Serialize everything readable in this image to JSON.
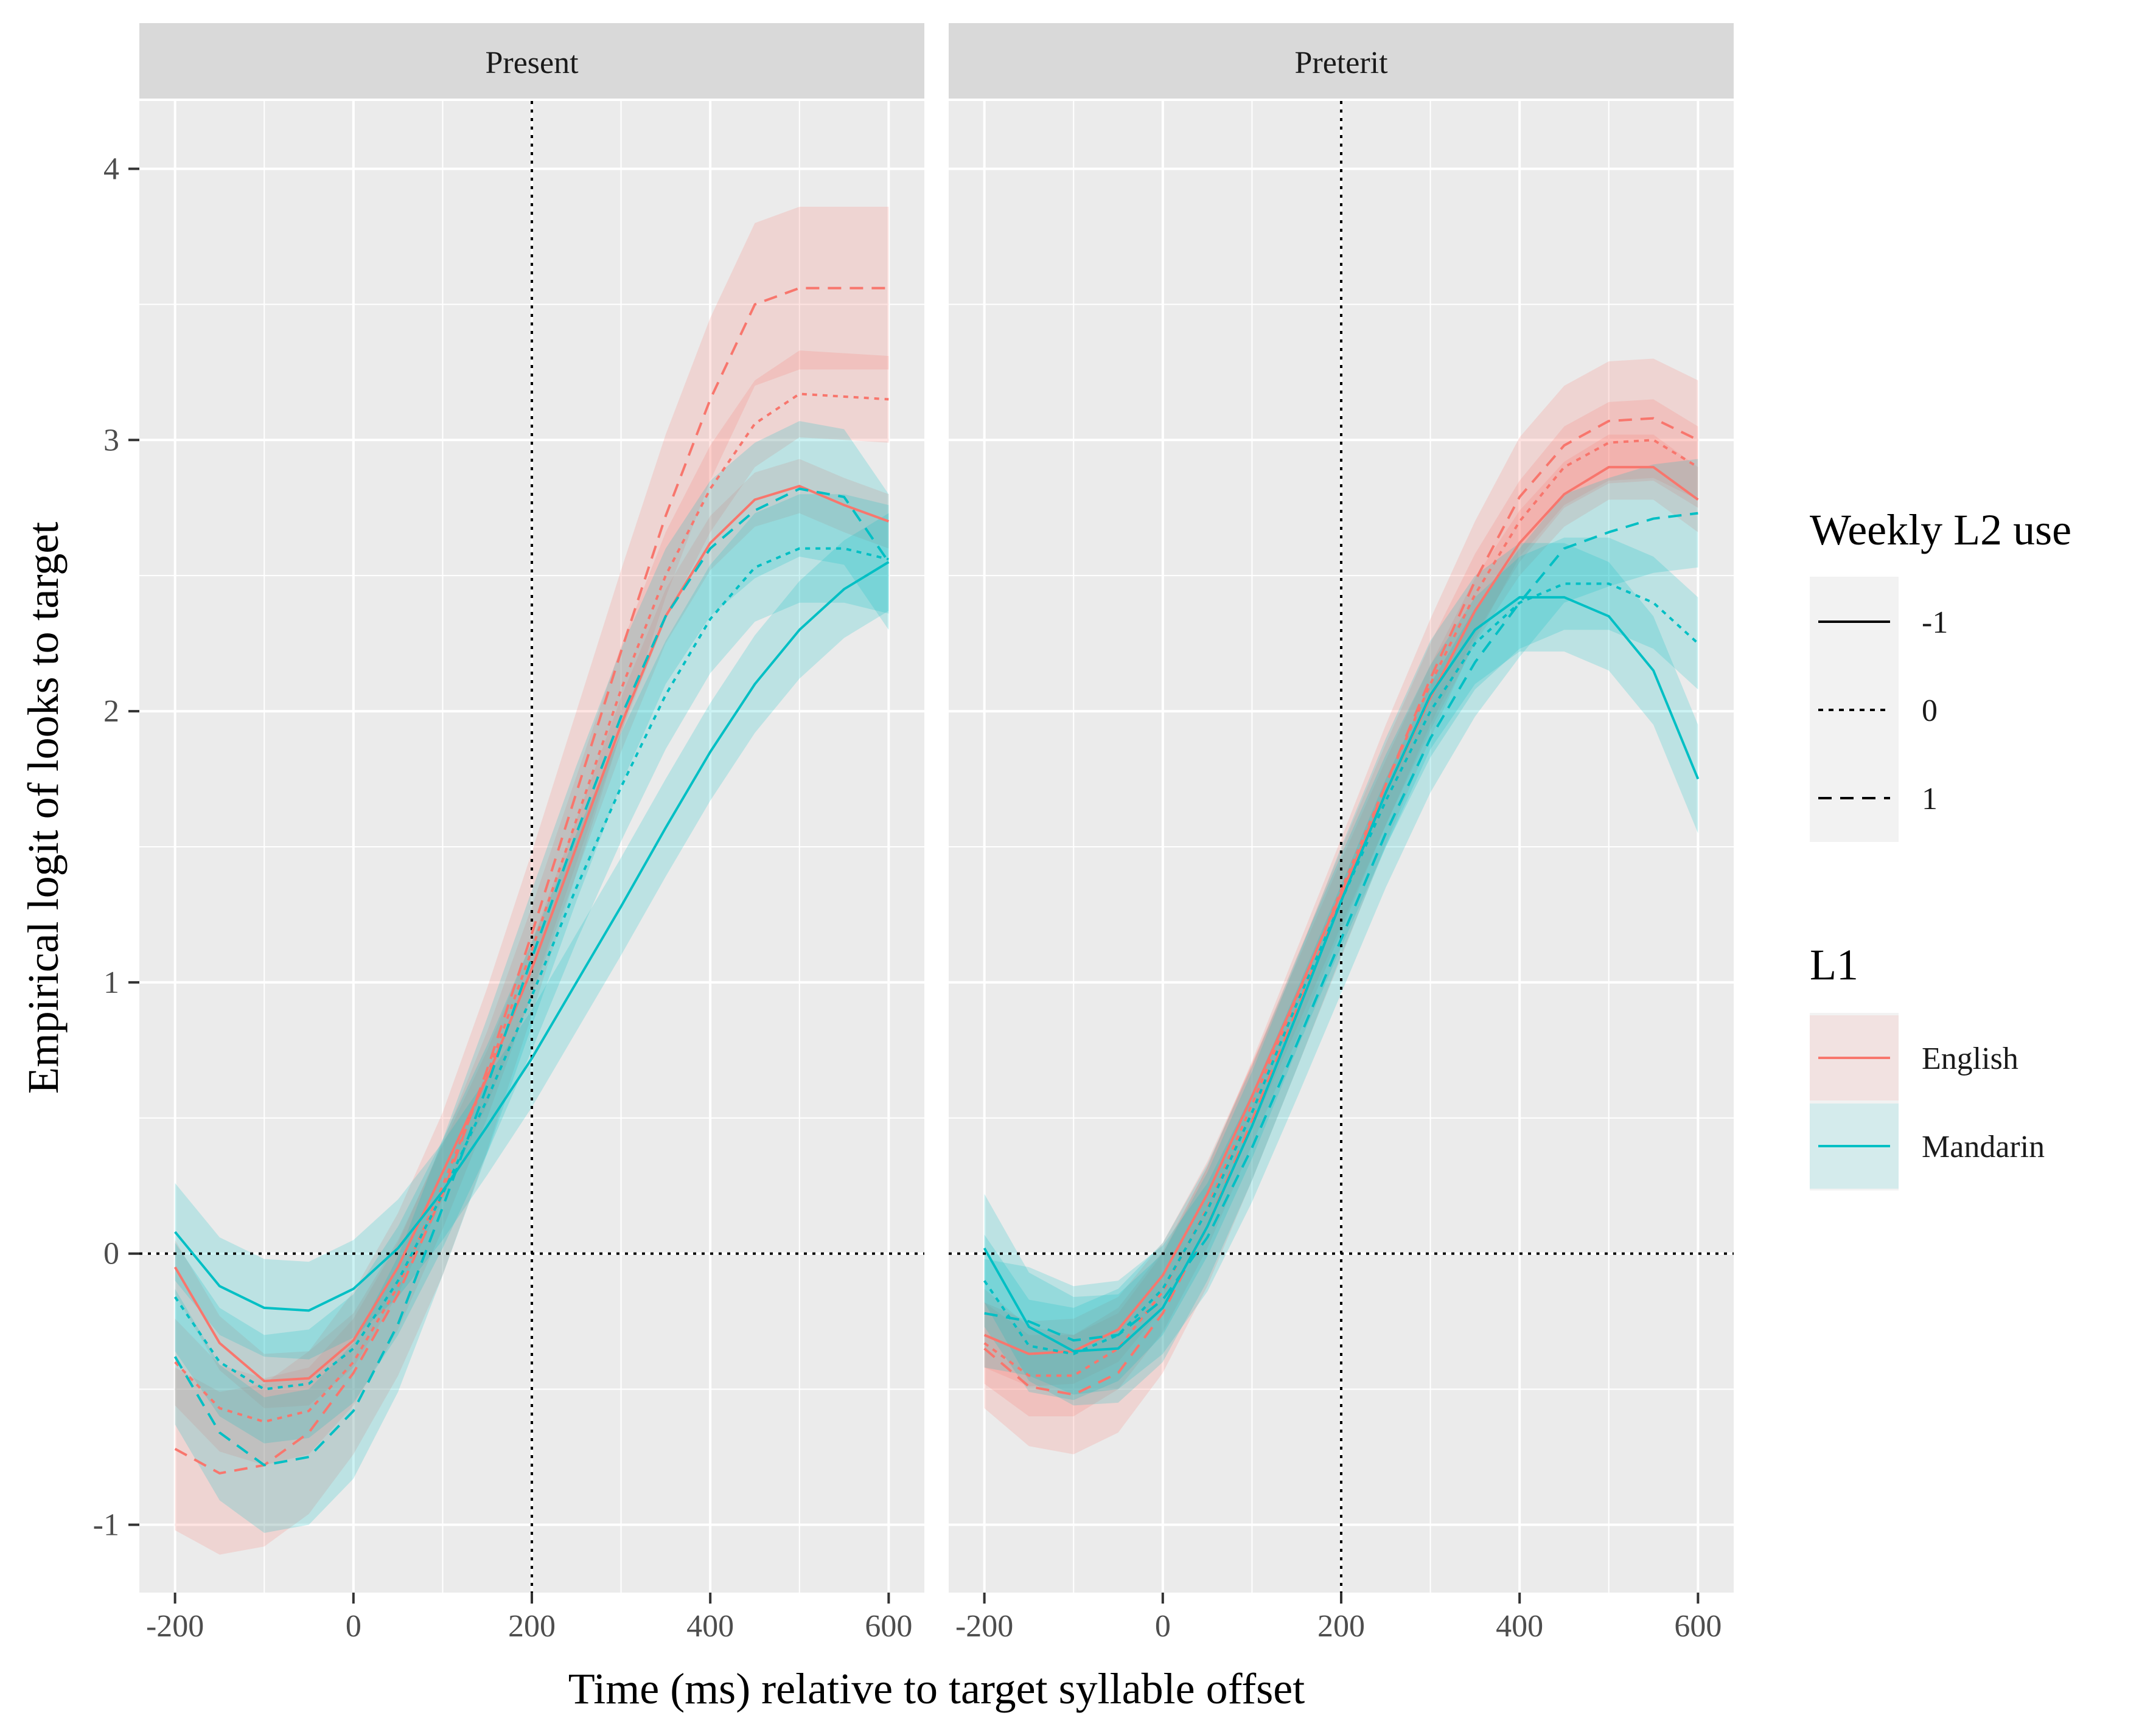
{
  "chart_data": {
    "type": "line",
    "title": "",
    "xlabel": "Time (ms) relative to target syllable offset",
    "ylabel": "Empirical logit of looks to target",
    "x": [
      -200,
      -150,
      -100,
      -50,
      0,
      50,
      100,
      150,
      200,
      250,
      300,
      350,
      400,
      450,
      500,
      550,
      600
    ],
    "xticks": [
      -200,
      0,
      200,
      400,
      600
    ],
    "xtick_labels": [
      "-200",
      "0",
      "200",
      "400",
      "600"
    ],
    "yticks": [
      -1,
      0,
      1,
      2,
      3,
      4
    ],
    "ytick_labels": [
      "-1",
      "0",
      "1",
      "2",
      "3",
      "4"
    ],
    "xlim": [
      -240,
      640
    ],
    "ylim": [
      -1.25,
      4.25
    ],
    "reference_lines": {
      "x": 200,
      "y": 0,
      "style": "dotted"
    },
    "grid": true,
    "legend_position": "right",
    "legend_linetype": {
      "title": "Weekly L2 use",
      "entries": [
        {
          "label": "-1",
          "dash": "solid"
        },
        {
          "label": "0",
          "dash": "dotted"
        },
        {
          "label": "1",
          "dash": "dashed"
        }
      ]
    },
    "legend_color": {
      "title": "L1",
      "entries": [
        {
          "label": "English",
          "color": "#F8766D"
        },
        {
          "label": "Mandarin",
          "color": "#00BFC4"
        }
      ]
    },
    "panels": [
      {
        "label": "Present",
        "series": [
          {
            "l1": "English",
            "l2": "-1",
            "values": [
              -0.05,
              -0.33,
              -0.47,
              -0.46,
              -0.32,
              -0.05,
              0.3,
              0.65,
              1.05,
              1.5,
              1.95,
              2.35,
              2.62,
              2.78,
              2.83,
              2.76,
              2.7
            ],
            "band": 0.1
          },
          {
            "l1": "English",
            "l2": "0",
            "values": [
              -0.4,
              -0.57,
              -0.62,
              -0.58,
              -0.4,
              -0.12,
              0.25,
              0.66,
              1.12,
              1.6,
              2.08,
              2.5,
              2.82,
              3.06,
              3.17,
              3.16,
              3.15
            ],
            "band": 0.16
          },
          {
            "l1": "English",
            "l2": "1",
            "values": [
              -0.72,
              -0.81,
              -0.78,
              -0.66,
              -0.44,
              -0.15,
              0.22,
              0.68,
              1.18,
              1.7,
              2.22,
              2.72,
              3.15,
              3.5,
              3.56,
              3.56,
              3.56
            ],
            "band": 0.3
          },
          {
            "l1": "Mandarin",
            "l2": "-1",
            "values": [
              0.08,
              -0.12,
              -0.2,
              -0.21,
              -0.13,
              0.02,
              0.23,
              0.47,
              0.72,
              1.0,
              1.28,
              1.57,
              1.85,
              2.1,
              2.3,
              2.45,
              2.55
            ],
            "band": 0.18
          },
          {
            "l1": "Mandarin",
            "l2": "0",
            "values": [
              -0.16,
              -0.4,
              -0.5,
              -0.48,
              -0.35,
              -0.1,
              0.22,
              0.57,
              0.95,
              1.35,
              1.72,
              2.06,
              2.34,
              2.53,
              2.6,
              2.6,
              2.56
            ],
            "band": 0.2
          },
          {
            "l1": "Mandarin",
            "l2": "1",
            "values": [
              -0.38,
              -0.66,
              -0.78,
              -0.75,
              -0.58,
              -0.26,
              0.17,
              0.62,
              1.09,
              1.55,
              1.98,
              2.35,
              2.6,
              2.74,
              2.82,
              2.79,
              2.55
            ],
            "band": 0.25
          }
        ]
      },
      {
        "label": "Preterit",
        "series": [
          {
            "l1": "English",
            "l2": "-1",
            "values": [
              -0.3,
              -0.37,
              -0.36,
              -0.28,
              -0.08,
              0.22,
              0.58,
              0.95,
              1.33,
              1.7,
              2.05,
              2.37,
              2.62,
              2.8,
              2.9,
              2.9,
              2.78
            ],
            "band": 0.12
          },
          {
            "l1": "English",
            "l2": "0",
            "values": [
              -0.33,
              -0.45,
              -0.45,
              -0.35,
              -0.14,
              0.17,
              0.55,
              0.94,
              1.34,
              1.73,
              2.1,
              2.43,
              2.7,
              2.9,
              2.99,
              3.0,
              2.9
            ],
            "band": 0.15
          },
          {
            "l1": "English",
            "l2": "1",
            "values": [
              -0.35,
              -0.49,
              -0.52,
              -0.44,
              -0.22,
              0.1,
              0.49,
              0.9,
              1.31,
              1.73,
              2.12,
              2.48,
              2.79,
              2.98,
              3.07,
              3.08,
              3.0
            ],
            "band": 0.22
          },
          {
            "l1": "Mandarin",
            "l2": "-1",
            "values": [
              0.02,
              -0.27,
              -0.36,
              -0.35,
              -0.2,
              0.1,
              0.47,
              0.88,
              1.3,
              1.7,
              2.06,
              2.3,
              2.42,
              2.42,
              2.35,
              2.15,
              1.75
            ],
            "band": 0.2
          },
          {
            "l1": "Mandarin",
            "l2": "0",
            "values": [
              -0.1,
              -0.34,
              -0.37,
              -0.3,
              -0.13,
              0.16,
              0.52,
              0.92,
              1.3,
              1.67,
              2.0,
              2.25,
              2.4,
              2.47,
              2.47,
              2.4,
              2.25
            ],
            "band": 0.17
          },
          {
            "l1": "Mandarin",
            "l2": "1",
            "values": [
              -0.22,
              -0.25,
              -0.32,
              -0.3,
              -0.17,
              0.06,
              0.39,
              0.77,
              1.16,
              1.55,
              1.9,
              2.18,
              2.4,
              2.6,
              2.66,
              2.71,
              2.73
            ],
            "band": 0.2
          }
        ]
      }
    ]
  }
}
